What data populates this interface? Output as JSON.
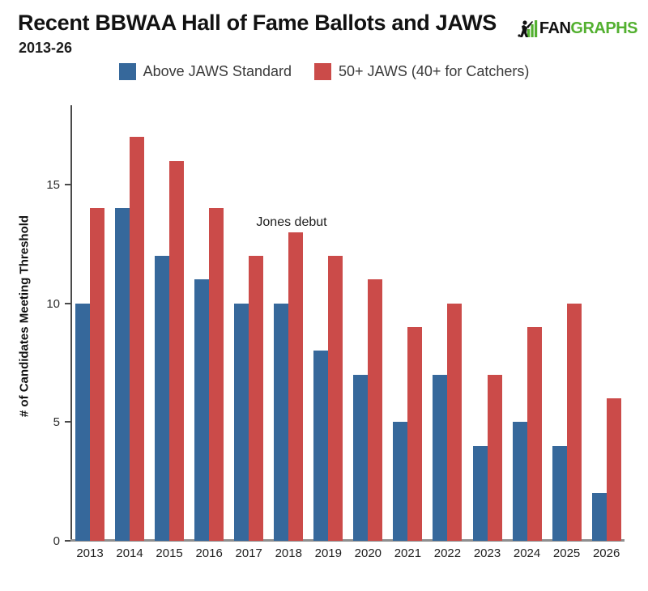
{
  "header": {
    "title": "Recent BBWAA Hall of Fame Ballots and JAWS",
    "subtitle": "2013-26",
    "logo": {
      "fan": "FAN",
      "graphs": "GRAPHS",
      "green": "#53b030",
      "black": "#111111"
    }
  },
  "legend": [
    {
      "label": "Above JAWS Standard",
      "color": "#36689b"
    },
    {
      "label": "50+ JAWS (40+ for Catchers)",
      "color": "#cb4b49"
    }
  ],
  "chart_data": {
    "type": "bar",
    "categories": [
      "2013",
      "2014",
      "2015",
      "2016",
      "2017",
      "2018",
      "2019",
      "2020",
      "2021",
      "2022",
      "2023",
      "2024",
      "2025",
      "2026"
    ],
    "series": [
      {
        "name": "Above JAWS Standard",
        "color": "#36689b",
        "values": [
          10,
          14,
          12,
          11,
          10,
          10,
          8,
          7,
          5,
          7,
          4,
          5,
          4,
          2
        ]
      },
      {
        "name": "50+ JAWS (40+ for Catchers)",
        "color": "#cb4b49",
        "values": [
          14,
          17,
          16,
          14,
          12,
          13,
          12,
          11,
          9,
          10,
          7,
          9,
          10,
          6
        ]
      }
    ],
    "title": "Recent BBWAA Hall of Fame Ballots and JAWS",
    "subtitle": "2013-26",
    "xlabel": "",
    "ylabel": "# of Candidates Meeting Threshold",
    "yticks": [
      0,
      5,
      10,
      15
    ],
    "ylim": [
      0,
      18.3
    ],
    "grid": false,
    "legend_position": "top",
    "annotation": {
      "text": "Jones debut",
      "category": "2018"
    }
  }
}
